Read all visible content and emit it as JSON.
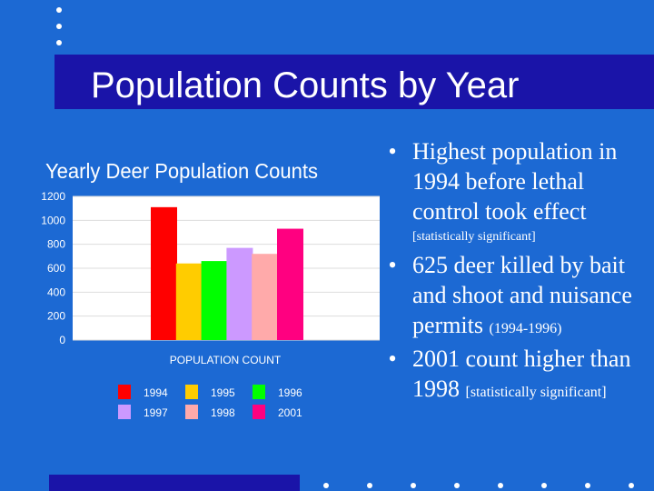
{
  "slide": {
    "title": "Population Counts by Year",
    "bullets": [
      {
        "text": "Highest population in 1994 before lethal control took effect",
        "note": "[statistically significant]"
      },
      {
        "text": "625 deer killed by bait and shoot and nuisance permits ",
        "small": "(1994-1996)"
      },
      {
        "text": "2001 count higher than 1998 ",
        "small": "[statistically significant]"
      }
    ]
  },
  "chart_data": {
    "type": "bar",
    "title": "Yearly Deer Population Counts",
    "xlabel": "POPULATION COUNT",
    "ylabel": "",
    "ylim": [
      0,
      1200
    ],
    "yticks": [
      "0",
      "200",
      "400",
      "600",
      "800",
      "1000",
      "1200"
    ],
    "series": [
      {
        "name": "1994",
        "value": 1110,
        "color": "#ff0000"
      },
      {
        "name": "1995",
        "value": 640,
        "color": "#ffcc00"
      },
      {
        "name": "1996",
        "value": 660,
        "color": "#00ff00"
      },
      {
        "name": "1997",
        "value": 770,
        "color": "#cc99ff"
      },
      {
        "name": "1998",
        "value": 720,
        "color": "#ffaaaa"
      },
      {
        "name": "2001",
        "value": 930,
        "color": "#ff0080"
      }
    ],
    "grid": true,
    "legend": "bottom",
    "colors": {
      "plot_bg": "#ffffff",
      "grid": "#dddddd",
      "text": "#ffffff"
    }
  }
}
